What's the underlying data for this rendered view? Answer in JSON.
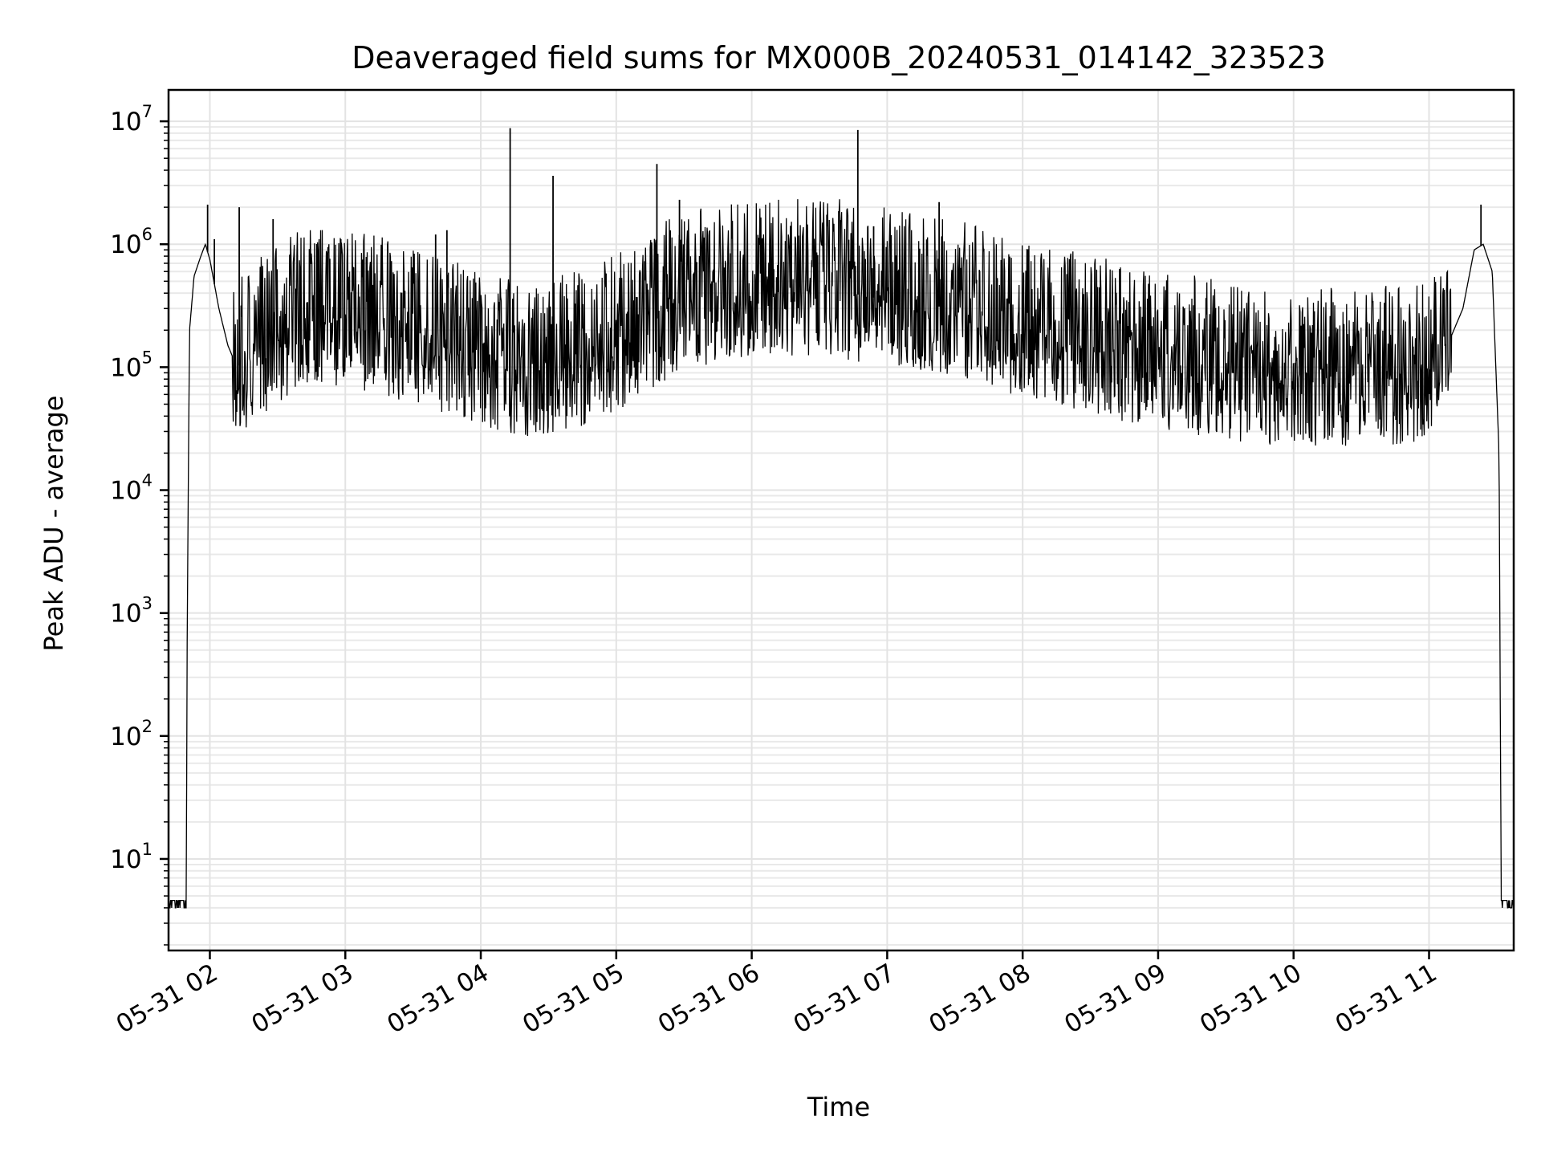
{
  "chart_data": {
    "type": "line",
    "title": "Deaveraged field sums for MX000B_20240531_014142_323523",
    "xlabel": "Time",
    "ylabel": "Peak ADU - average",
    "yscale": "log",
    "ylim": [
      1.8,
      18000000
    ],
    "xlim": [
      "2024-05-31 01:41:42",
      "2024-05-31 11:37:30"
    ],
    "grid": true,
    "line_color": "#000000",
    "x_ticks": [
      {
        "t": "2024-05-31 02:00",
        "label": "05-31 02"
      },
      {
        "t": "2024-05-31 03:00",
        "label": "05-31 03"
      },
      {
        "t": "2024-05-31 04:00",
        "label": "05-31 04"
      },
      {
        "t": "2024-05-31 05:00",
        "label": "05-31 05"
      },
      {
        "t": "2024-05-31 06:00",
        "label": "05-31 06"
      },
      {
        "t": "2024-05-31 07:00",
        "label": "05-31 07"
      },
      {
        "t": "2024-05-31 08:00",
        "label": "05-31 08"
      },
      {
        "t": "2024-05-31 09:00",
        "label": "05-31 09"
      },
      {
        "t": "2024-05-31 10:00",
        "label": "05-31 10"
      },
      {
        "t": "2024-05-31 11:00",
        "label": "05-31 11"
      }
    ],
    "y_ticks": [
      {
        "value": 10,
        "base": "10",
        "exp": "1"
      },
      {
        "value": 100,
        "base": "10",
        "exp": "2"
      },
      {
        "value": 1000,
        "base": "10",
        "exp": "3"
      },
      {
        "value": 10000,
        "base": "10",
        "exp": "4"
      },
      {
        "value": 100000,
        "base": "10",
        "exp": "5"
      },
      {
        "value": 1000000,
        "base": "10",
        "exp": "6"
      },
      {
        "value": 10000000,
        "base": "10",
        "exp": "7"
      }
    ],
    "series": [
      {
        "points": [
          [
            "2024-05-31 01:41:42",
            4
          ],
          [
            "2024-05-31 01:49:30",
            4
          ],
          [
            "2024-05-31 01:50:00",
            1000
          ],
          [
            "2024-05-31 01:51:00",
            200000
          ],
          [
            "2024-05-31 01:53:00",
            550000
          ],
          [
            "2024-05-31 01:56:00",
            800000
          ],
          [
            "2024-05-31 01:58:00",
            1000000
          ],
          [
            "2024-05-31 02:00:00",
            750000
          ],
          [
            "2024-05-31 02:04:00",
            300000
          ],
          [
            "2024-05-31 02:08:00",
            150000
          ],
          [
            "2024-05-31 02:12:00",
            100000
          ],
          [
            "2024-05-31 02:20:00",
            130000
          ],
          [
            "2024-05-31 02:40:00",
            250000
          ],
          [
            "2024-05-31 03:00:00",
            250000
          ],
          [
            "2024-05-31 03:30:00",
            180000
          ],
          [
            "2024-05-31 04:00:00",
            110000
          ],
          [
            "2024-05-31 04:30:00",
            90000
          ],
          [
            "2024-05-31 05:00:00",
            150000
          ],
          [
            "2024-05-31 05:30:00",
            350000
          ],
          [
            "2024-05-31 06:00:00",
            400000
          ],
          [
            "2024-05-31 06:30:00",
            450000
          ],
          [
            "2024-05-31 07:00:00",
            350000
          ],
          [
            "2024-05-31 07:30:00",
            300000
          ],
          [
            "2024-05-31 08:00:00",
            200000
          ],
          [
            "2024-05-31 08:30:00",
            150000
          ],
          [
            "2024-05-31 09:00:00",
            110000
          ],
          [
            "2024-05-31 09:30:00",
            90000
          ],
          [
            "2024-05-31 10:00:00",
            80000
          ],
          [
            "2024-05-31 10:30:00",
            80000
          ],
          [
            "2024-05-31 10:55:00",
            85000
          ],
          [
            "2024-05-31 11:05:00",
            110000
          ],
          [
            "2024-05-31 11:15:00",
            300000
          ],
          [
            "2024-05-31 11:20:00",
            900000
          ],
          [
            "2024-05-31 11:24:00",
            1000000
          ],
          [
            "2024-05-31 11:28:00",
            600000
          ],
          [
            "2024-05-31 11:31:00",
            20000
          ],
          [
            "2024-05-31 11:32:00",
            4
          ],
          [
            "2024-05-31 11:37:30",
            4
          ]
        ]
      }
    ],
    "spikes": [
      {
        "t": "2024-05-31 01:59:00",
        "value": 2100000
      },
      {
        "t": "2024-05-31 02:02:00",
        "value": 1100000
      },
      {
        "t": "2024-05-31 02:13:00",
        "value": 2000000
      },
      {
        "t": "2024-05-31 02:28:00",
        "value": 1600000
      },
      {
        "t": "2024-05-31 02:58:00",
        "value": 1100000
      },
      {
        "t": "2024-05-31 03:40:00",
        "value": 1200000
      },
      {
        "t": "2024-05-31 03:45:00",
        "value": 1300000
      },
      {
        "t": "2024-05-31 04:13:00",
        "value": 8800000
      },
      {
        "t": "2024-05-31 04:32:00",
        "value": 3600000
      },
      {
        "t": "2024-05-31 05:18:00",
        "value": 4500000
      },
      {
        "t": "2024-05-31 05:28:00",
        "value": 2300000
      },
      {
        "t": "2024-05-31 06:47:00",
        "value": 8500000
      },
      {
        "t": "2024-05-31 06:54:00",
        "value": 1400000
      },
      {
        "t": "2024-05-31 07:23:00",
        "value": 2200000
      },
      {
        "t": "2024-05-31 11:23:00",
        "value": 2100000
      }
    ]
  }
}
